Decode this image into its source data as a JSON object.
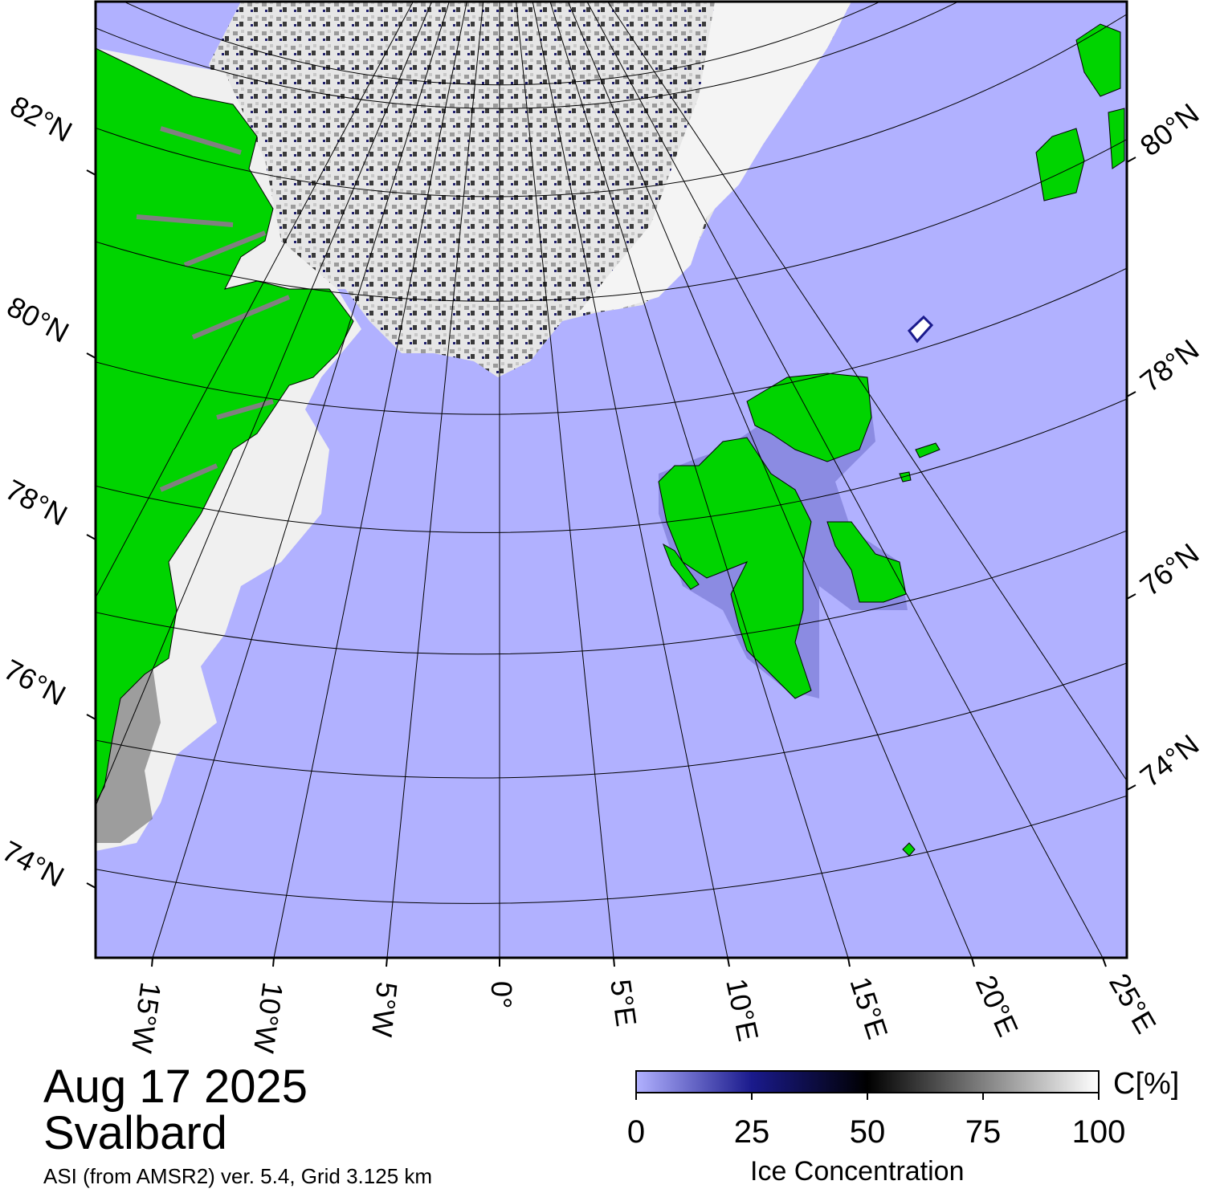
{
  "date": "Aug 17 2025",
  "region": "Svalbard",
  "source_note": "ASI (from AMSR2) ver. 5.4,  Grid 3.125 km",
  "colorbar": {
    "unit": "C[%]",
    "title": "Ice Concentration",
    "ticks": [
      "0",
      "25",
      "50",
      "75",
      "100"
    ],
    "colors": [
      "#b1b1ff",
      "#1a1a8c",
      "#000000",
      "#808080",
      "#ffffff"
    ]
  },
  "lat_labels_left": [
    "82°N",
    "80°N",
    "78°N",
    "76°N",
    "74°N"
  ],
  "lat_labels_right": [
    "80°N",
    "78°N",
    "76°N",
    "74°N"
  ],
  "lon_labels": [
    "15°W",
    "10°W",
    "5°W",
    "0°",
    "5°E",
    "10°E",
    "15°E",
    "20°E",
    "25°E"
  ],
  "colors": {
    "ocean": "#b1b1ff",
    "land": "#00d400",
    "ice": "#f2f2f2"
  }
}
